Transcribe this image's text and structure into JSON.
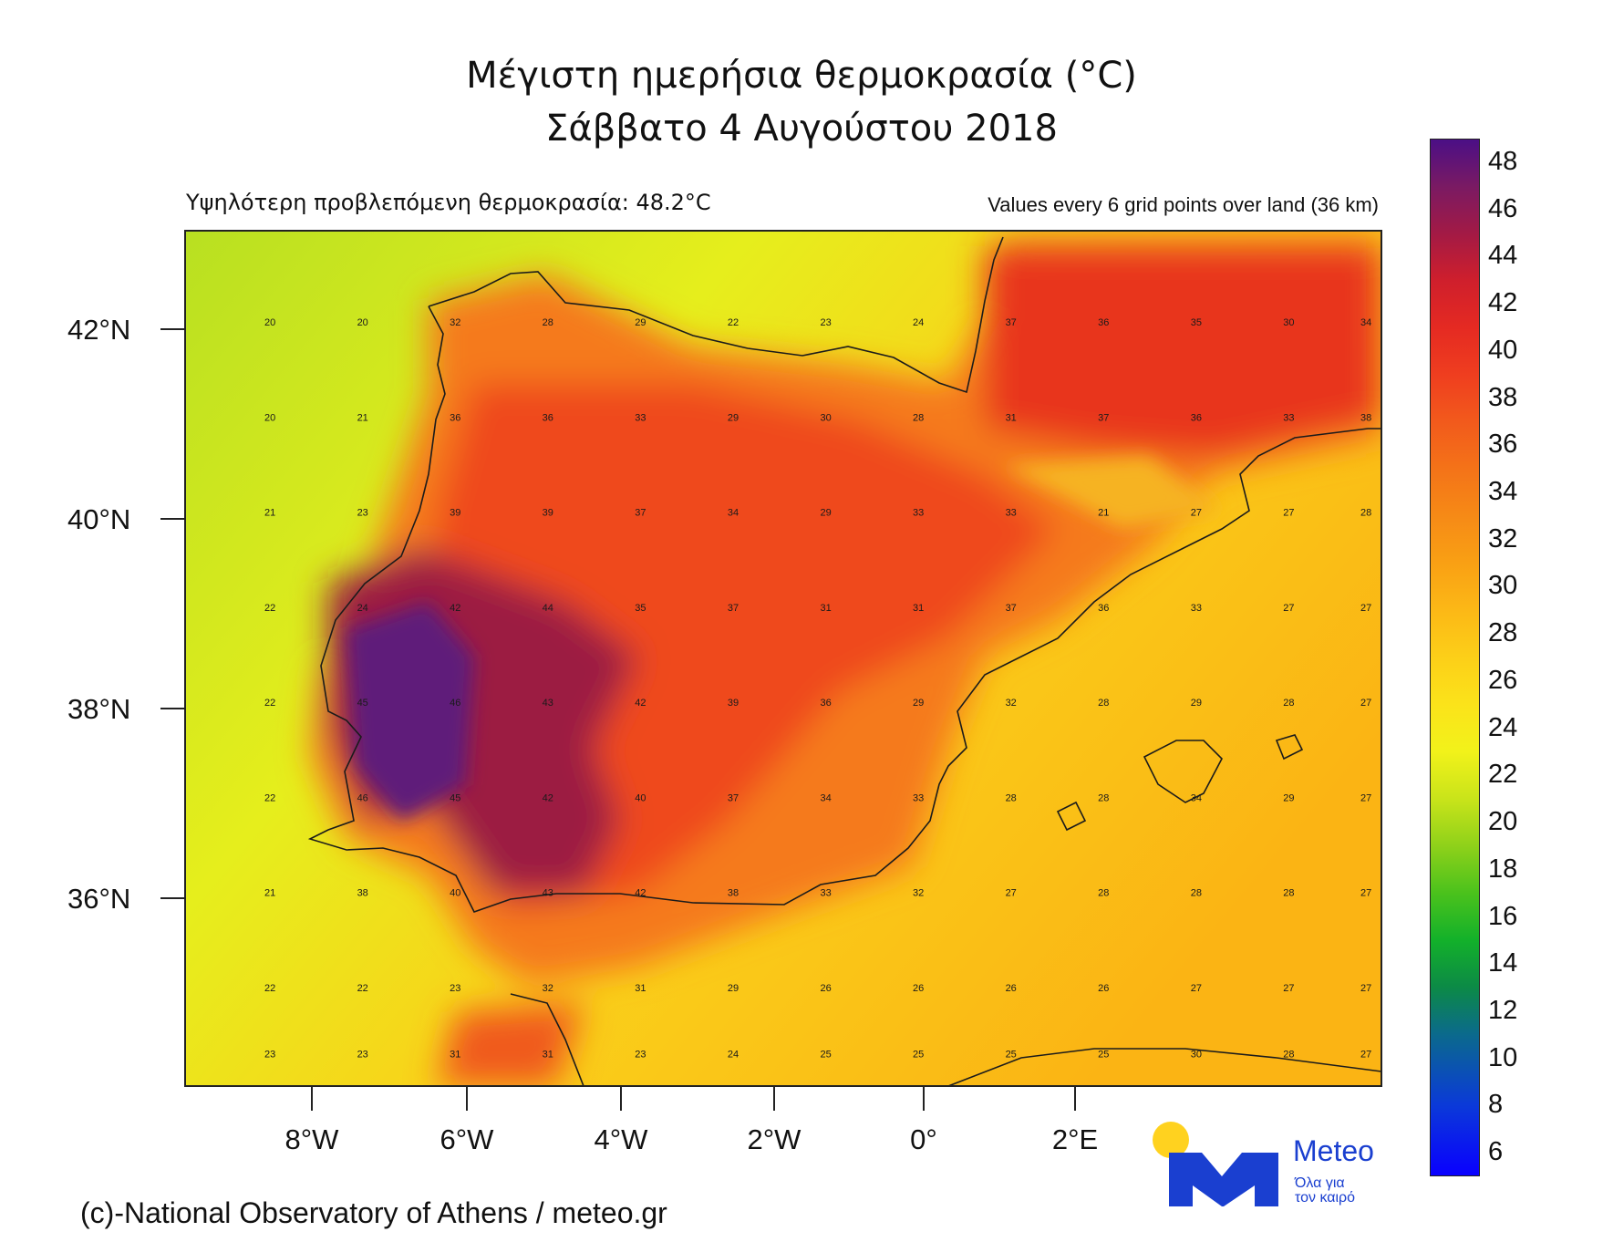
{
  "title": {
    "line1": "Μέγιστη ημερήσια θερμοκρασία (°C)",
    "line2": "Σάββατο 4 Αυγούστου 2018"
  },
  "subtitle_left": "Υψηλότερη προβλεπόμενη θερμοκρασία: 48.2°C",
  "subtitle_right": "Values every 6 grid points over land (36 km)",
  "credit": "(c)-National Observatory of Athens / meteo.gr",
  "logo": {
    "word": "Meteo",
    "slogan_line1": "Όλα για",
    "slogan_line2": "τον καιρό",
    "colors": {
      "sun": "#ffd21f",
      "mark": "#1a3fd0"
    }
  },
  "chart_data": {
    "type": "heatmap",
    "variable": "Μέγιστη ημερήσια θερμοκρασία (°C)",
    "date": "Σάββατο 4 Αυγούστου 2018",
    "max_value": 48.2,
    "lon_range": [
      -9.7,
      5.8
    ],
    "lat_range": [
      34.3,
      43.3
    ],
    "x_ticks": [
      "8°W",
      "6°W",
      "4°W",
      "2°W",
      "0°",
      "2°E"
    ],
    "x_tick_values": [
      -8,
      -6,
      -4,
      -2,
      0,
      2
    ],
    "y_ticks": [
      "42°N",
      "40°N",
      "38°N",
      "36°N"
    ],
    "y_tick_values": [
      42,
      40,
      38,
      36
    ],
    "colorbar": {
      "labels": [
        "48",
        "46",
        "44",
        "42",
        "40",
        "38",
        "36",
        "34",
        "32",
        "30",
        "28",
        "26",
        "24",
        "22",
        "20",
        "18",
        "16",
        "14",
        "12",
        "10",
        "8",
        "6"
      ],
      "range": [
        5,
        49
      ],
      "step": 1
    },
    "grid_lons": [
      -8.6,
      -7.4,
      -6.2,
      -5.0,
      -3.8,
      -2.6,
      -1.4,
      -0.2,
      1.0,
      2.2,
      3.4,
      4.6,
      5.6
    ],
    "grid_lats": [
      42.3,
      41.3,
      40.3,
      39.3,
      38.3,
      37.3,
      36.3,
      35.3,
      34.6
    ],
    "grid_values": [
      [
        20,
        20,
        32,
        28,
        29,
        22,
        23,
        24,
        37,
        36,
        35,
        30,
        34
      ],
      [
        20,
        21,
        36,
        36,
        33,
        29,
        30,
        28,
        31,
        37,
        36,
        33,
        38
      ],
      [
        21,
        23,
        39,
        39,
        37,
        34,
        29,
        33,
        33,
        21,
        27,
        27,
        28
      ],
      [
        22,
        24,
        42,
        44,
        35,
        37,
        31,
        31,
        37,
        36,
        33,
        27,
        27
      ],
      [
        22,
        45,
        46,
        43,
        42,
        39,
        36,
        29,
        32,
        28,
        29,
        28,
        27
      ],
      [
        22,
        46,
        45,
        42,
        40,
        37,
        34,
        33,
        28,
        28,
        34,
        29,
        27
      ],
      [
        21,
        38,
        40,
        43,
        42,
        38,
        33,
        32,
        27,
        28,
        28,
        28,
        27
      ],
      [
        22,
        22,
        23,
        32,
        31,
        29,
        26,
        26,
        26,
        26,
        27,
        27,
        27
      ],
      [
        23,
        23,
        31,
        31,
        23,
        24,
        25,
        25,
        25,
        25,
        30,
        28,
        27
      ]
    ]
  }
}
